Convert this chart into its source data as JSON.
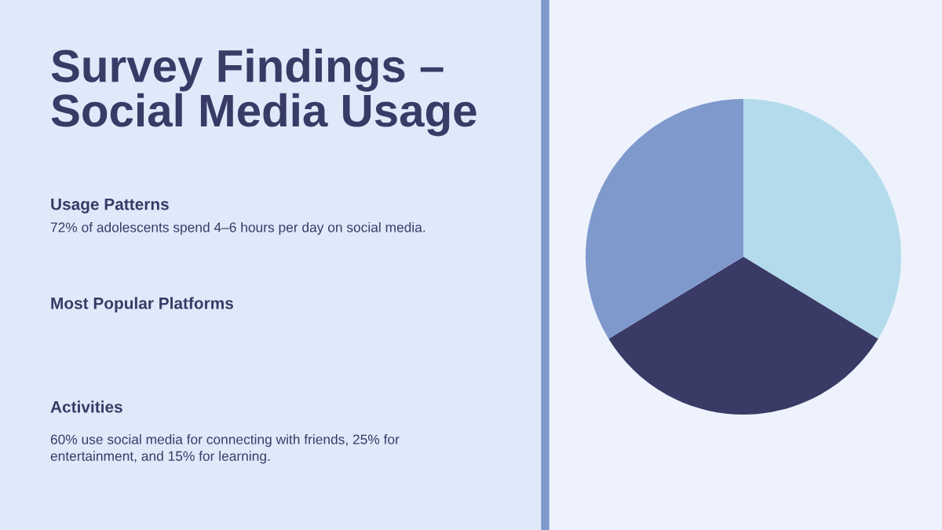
{
  "chart_data": {
    "type": "pie",
    "title": "Survey Findings –\nSocial Media Usage",
    "categories": [
      null,
      null,
      null
    ],
    "values": [
      33.7,
      32.6,
      33.7
    ],
    "colors": [
      "#b3dbec",
      "#3a3a66",
      "#7f99cd"
    ],
    "annotations": [
      "Usage Patterns",
      "72% of adolescents spend 4–6 hours per day on social media.",
      "Most Popular Platforms",
      "Activities",
      "60% use social media for connecting with friends, 25% for\nentertainment, and 15% for learning."
    ]
  }
}
